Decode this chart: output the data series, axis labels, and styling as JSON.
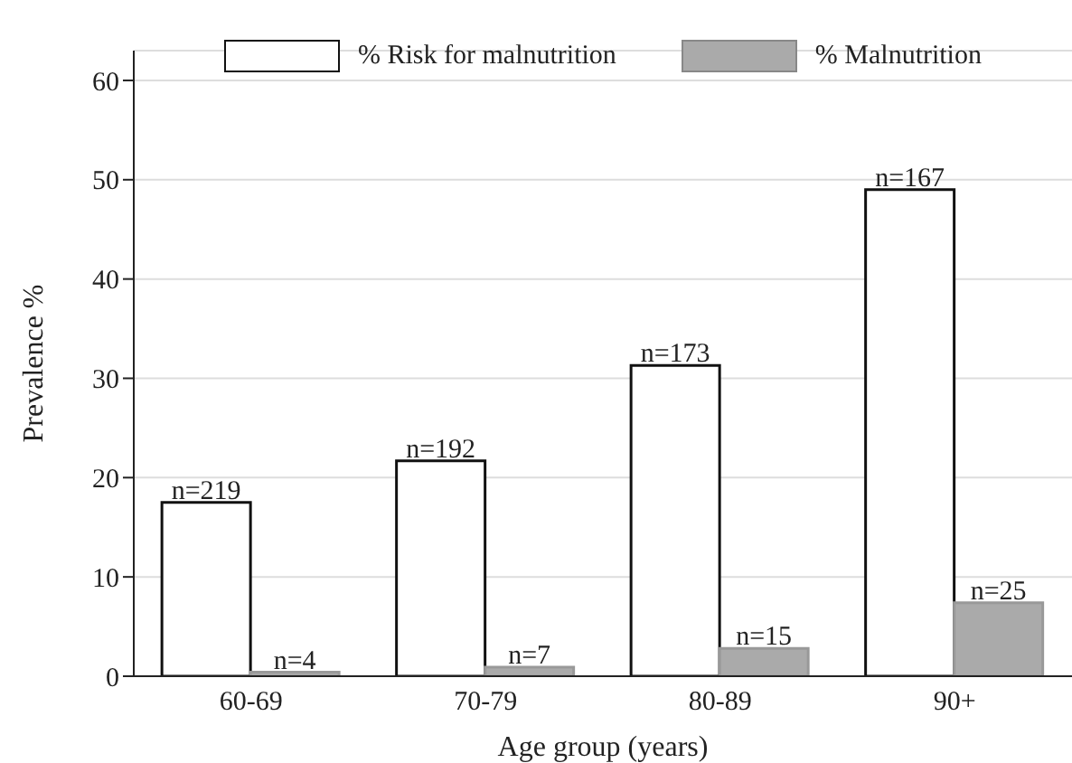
{
  "chart_data": {
    "type": "bar",
    "xlabel": "Age group (years)",
    "ylabel": "Prevalence %",
    "categories": [
      "60-69",
      "70-79",
      "80-89",
      "90+"
    ],
    "series": [
      {
        "name": "% Risk for malnutrition",
        "color": "#ffffff",
        "values": [
          17.5,
          21.7,
          31.3,
          49.0
        ]
      },
      {
        "name": "% Malnutrition",
        "color": "#aaaaaa",
        "values": [
          0.4,
          0.9,
          2.8,
          7.4
        ]
      }
    ],
    "annotations": [
      {
        "text": "n=219",
        "x": "60-69",
        "y": 17.5
      },
      {
        "text": "n=4",
        "x": "60-69",
        "y": 0.4
      },
      {
        "text": "n=192",
        "x": "70-79",
        "y": 21.7
      },
      {
        "text": "n=7",
        "x": "70-79",
        "y": 0.9
      },
      {
        "text": "n=173",
        "x": "80-89",
        "y": 31.3
      },
      {
        "text": "n=15",
        "x": "80-89",
        "y": 2.8
      },
      {
        "text": "n=167",
        "x": "90+",
        "y": 49.0
      },
      {
        "text": "n=25",
        "x": "90+",
        "y": 7.4
      }
    ],
    "ylim": [
      0,
      63
    ],
    "yticks": [
      0,
      10,
      20,
      30,
      40,
      50,
      60
    ],
    "grid": "y",
    "legend": "top"
  }
}
